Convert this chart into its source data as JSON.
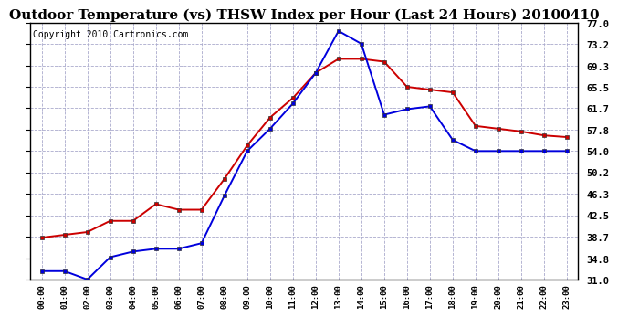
{
  "title": "Outdoor Temperature (vs) THSW Index per Hour (Last 24 Hours) 20100410",
  "copyright": "Copyright 2010 Cartronics.com",
  "hours": [
    "00:00",
    "01:00",
    "02:00",
    "03:00",
    "04:00",
    "05:00",
    "06:00",
    "07:00",
    "08:00",
    "09:00",
    "10:00",
    "11:00",
    "12:00",
    "13:00",
    "14:00",
    "15:00",
    "16:00",
    "17:00",
    "18:00",
    "19:00",
    "20:00",
    "21:00",
    "22:00",
    "23:00"
  ],
  "temp_blue": [
    32.5,
    32.5,
    31.0,
    35.0,
    36.0,
    36.5,
    36.5,
    37.5,
    46.0,
    54.0,
    58.0,
    62.5,
    68.0,
    75.5,
    73.2,
    60.5,
    61.5,
    62.0,
    56.0,
    54.0,
    54.0,
    54.0,
    54.0,
    54.0
  ],
  "thsw_red": [
    38.5,
    39.0,
    39.5,
    41.5,
    41.5,
    44.5,
    43.5,
    43.5,
    49.0,
    55.0,
    60.0,
    63.5,
    68.0,
    70.5,
    70.5,
    70.0,
    65.5,
    65.0,
    64.5,
    58.5,
    58.0,
    57.5,
    56.8,
    56.5
  ],
  "y_ticks": [
    31.0,
    34.8,
    38.7,
    42.5,
    46.3,
    50.2,
    54.0,
    57.8,
    61.7,
    65.5,
    69.3,
    73.2,
    77.0
  ],
  "y_min": 31.0,
  "y_max": 77.0,
  "bg_color": "#ffffff",
  "plot_bg_color": "#ffffff",
  "grid_color": "#aaaacc",
  "blue_color": "#0000dd",
  "red_color": "#cc0000",
  "title_fontsize": 11,
  "copyright_fontsize": 7
}
